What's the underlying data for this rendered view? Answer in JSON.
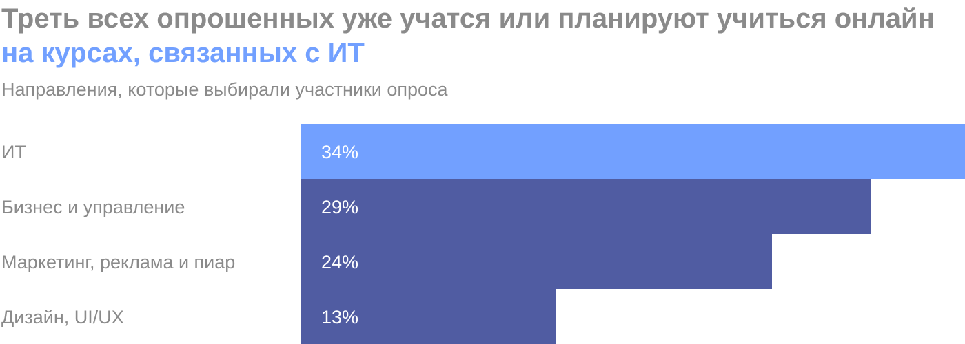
{
  "title": {
    "part1": "Треть всех опрошенных уже учатся или планируют учиться онлайн ",
    "part2": "на курсах, связанных с ИТ"
  },
  "subtitle": "Направления, которые выбирали участники опроса",
  "chart_data": {
    "type": "bar",
    "orientation": "horizontal",
    "categories": [
      "ИТ",
      "Бизнес и управление",
      "Маркетинг, реклама и пиар",
      "Дизайн, UI/UX"
    ],
    "values": [
      34,
      29,
      24,
      13
    ],
    "value_labels": [
      "34%",
      "29%",
      "24%",
      "13%"
    ],
    "bar_colors": [
      "#72a0ff",
      "#505ca2",
      "#505ca2",
      "#505ca2"
    ],
    "title": "Треть всех опрошенных уже учатся или планируют учиться онлайн на курсах, связанных с ИТ",
    "subtitle": "Направления, которые выбирали участники опроса",
    "xlabel": "",
    "ylabel": "",
    "grid": false,
    "legend": "none"
  },
  "colors": {
    "text_gray": "#8a8a8a",
    "accent": "#72a0ff",
    "bar_dark": "#505ca2",
    "background": "#ffffff"
  }
}
